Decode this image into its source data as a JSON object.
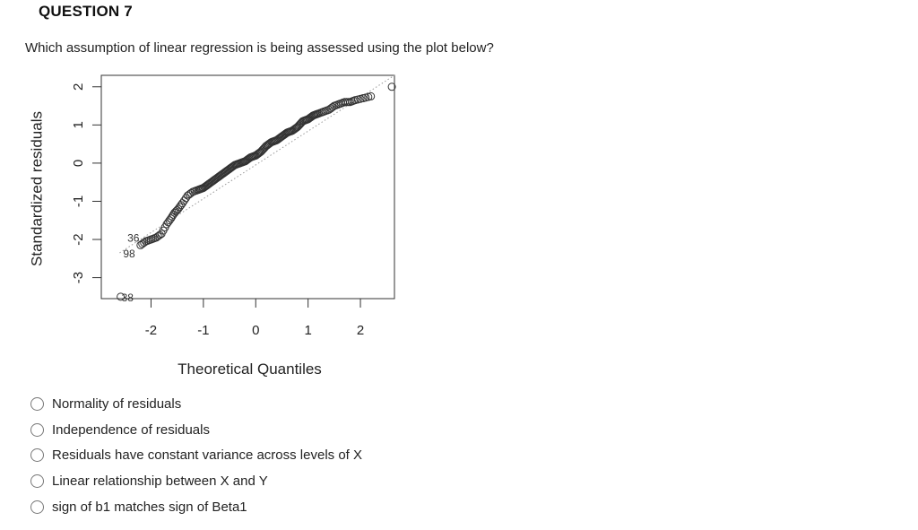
{
  "question": {
    "number": "QUESTION 7",
    "text": "Which assumption of linear regression is being assessed using the plot below?"
  },
  "chart_data": {
    "type": "scatter",
    "subtype": "normal Q-Q plot",
    "xlabel": "Theoretical Quantiles",
    "ylabel": "Standardized residuals",
    "xlim": [
      -2.95,
      2.65
    ],
    "ylim": [
      -3.55,
      2.3
    ],
    "x_ticks": [
      "-2",
      "-1",
      "0",
      "1",
      "2"
    ],
    "y_ticks": [
      "-3",
      "-2",
      "-1",
      "0",
      "1",
      "2"
    ],
    "reference_line": "dotted",
    "point_labels": [
      {
        "label": "36",
        "x": -2.2,
        "y": -2.1
      },
      {
        "label": "98",
        "x": -2.35,
        "y": -2.35
      },
      {
        "label": "38",
        "x": -2.7,
        "y": -3.5
      }
    ],
    "points_x": [
      -2.58,
      -2.2,
      -2.1,
      -2.0,
      -1.9,
      -1.8,
      -1.7,
      -1.62,
      -1.55,
      -1.48,
      -1.4,
      -1.3,
      -1.2,
      -1.1,
      -1.0,
      -0.9,
      -0.8,
      -0.7,
      -0.6,
      -0.5,
      -0.4,
      -0.3,
      -0.2,
      -0.1,
      0.0,
      0.1,
      0.2,
      0.3,
      0.4,
      0.5,
      0.6,
      0.7,
      0.8,
      0.9,
      1.0,
      1.1,
      1.2,
      1.3,
      1.4,
      1.5,
      1.6,
      1.7,
      1.8,
      1.9,
      2.05,
      2.2,
      2.6
    ],
    "points_y": [
      -3.5,
      -2.15,
      -2.05,
      -2.0,
      -1.95,
      -1.85,
      -1.6,
      -1.45,
      -1.3,
      -1.2,
      -1.05,
      -0.85,
      -0.75,
      -0.7,
      -0.65,
      -0.55,
      -0.45,
      -0.35,
      -0.25,
      -0.15,
      -0.05,
      0.0,
      0.05,
      0.15,
      0.2,
      0.3,
      0.45,
      0.55,
      0.6,
      0.7,
      0.8,
      0.85,
      0.95,
      1.1,
      1.15,
      1.25,
      1.3,
      1.35,
      1.4,
      1.5,
      1.55,
      1.6,
      1.6,
      1.65,
      1.7,
      1.75,
      2.0
    ]
  },
  "options": [
    {
      "label": "Normality of residuals",
      "selected": false
    },
    {
      "label": "Independence of residuals",
      "selected": false
    },
    {
      "label": "Residuals have constant variance across levels of X",
      "selected": false
    },
    {
      "label": "Linear relationship between X and Y",
      "selected": false
    },
    {
      "label": "sign of b1 matches sign of Beta1",
      "selected": false
    }
  ]
}
